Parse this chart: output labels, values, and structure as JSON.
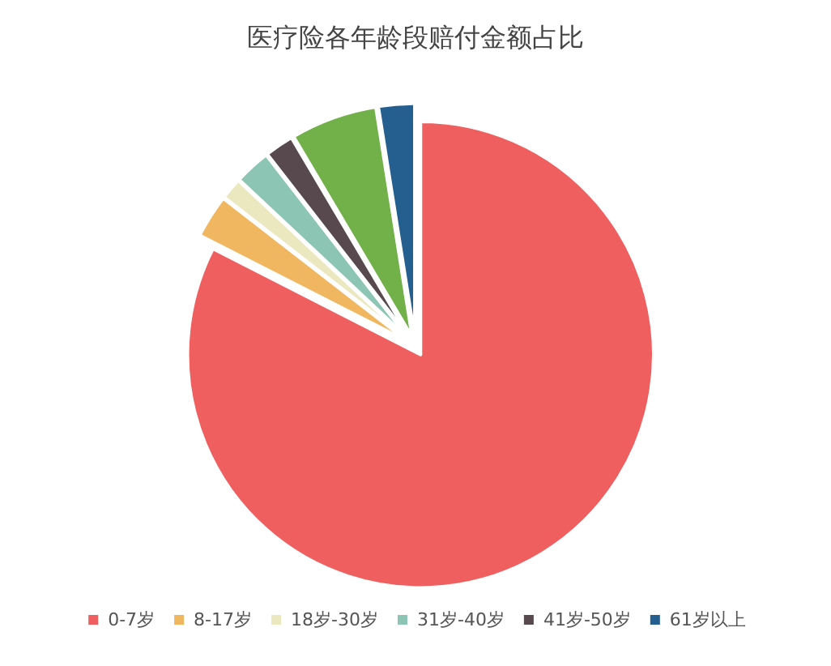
{
  "chart_data": {
    "type": "pie",
    "title": "医疗险各年龄段赔付金额占比",
    "categories": [
      "0-7岁",
      "8-17岁",
      "18岁-30岁",
      "31岁-40岁",
      "41岁-50岁",
      null,
      "61岁以上"
    ],
    "values": [
      82.5,
      3,
      1.5,
      2.5,
      2,
      6,
      2.5
    ],
    "colors": [
      "#ef5f5f",
      "#f0b760",
      "#ebe8c0",
      "#8cc5b4",
      "#58494f",
      "#72b04a",
      "#255f8f"
    ],
    "legend": "bottom"
  }
}
